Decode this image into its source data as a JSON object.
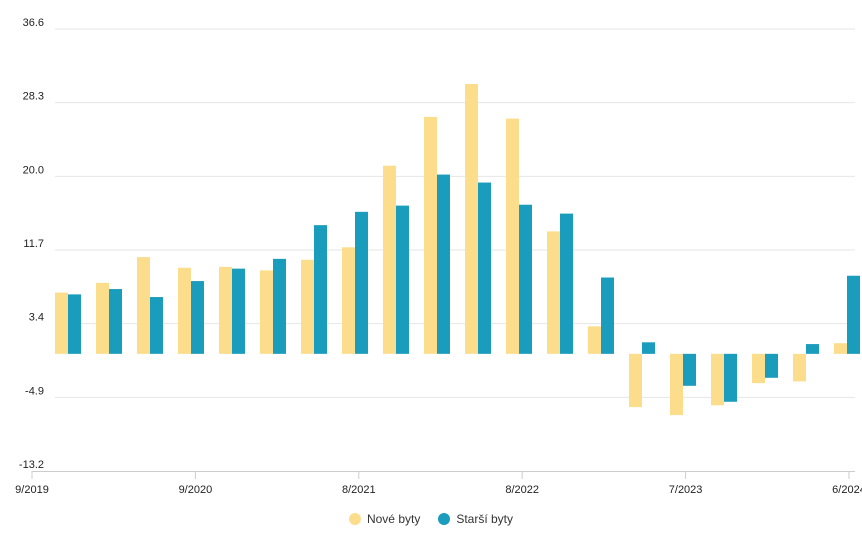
{
  "chart_data": {
    "type": "bar",
    "title": "",
    "xlabel": "",
    "ylabel": "",
    "ylim": [
      -13.2,
      36.6
    ],
    "yticks": [
      "36.6",
      "28.3",
      "20.0",
      "11.7",
      "3.4",
      "-4.9",
      "-13.2"
    ],
    "x_tick_labels": [
      "9/2019",
      "9/2020",
      "8/2021",
      "8/2022",
      "7/2023",
      "6/2024"
    ],
    "x_tick_positions": [
      0,
      4,
      8,
      12,
      16,
      20
    ],
    "grid": true,
    "legend_position": "bottom",
    "series": [
      {
        "name": "Nové byty",
        "color": "#fcdd8c",
        "values": [
          6.9,
          8.0,
          10.9,
          9.7,
          9.8,
          9.4,
          10.6,
          12.0,
          21.2,
          26.7,
          30.4,
          26.5,
          13.8,
          3.1,
          -6.0,
          -6.9,
          -5.8,
          -3.3,
          -3.1,
          1.2
        ]
      },
      {
        "name": "Starší byty",
        "color": "#1a9cbc",
        "values": [
          6.7,
          7.3,
          6.4,
          8.2,
          9.6,
          10.7,
          14.5,
          16.0,
          16.7,
          20.2,
          19.3,
          16.8,
          15.8,
          8.6,
          1.3,
          -3.6,
          -5.4,
          -2.7,
          1.1,
          8.8
        ]
      }
    ]
  }
}
